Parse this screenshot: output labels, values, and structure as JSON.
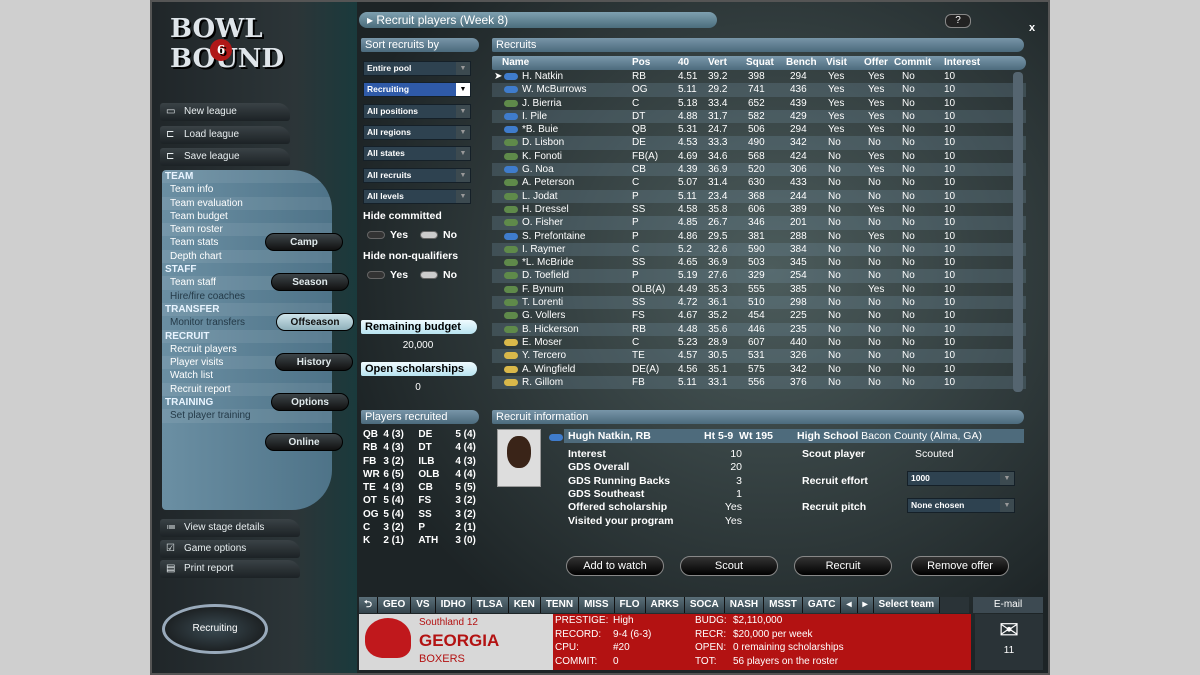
{
  "logo": {
    "text": "Bowl Bound",
    "badge": "6"
  },
  "left": {
    "buttons": [
      {
        "label": "New league",
        "icon": "folder-icon"
      },
      {
        "label": "Load league",
        "icon": "folder-open-icon"
      },
      {
        "label": "Save league",
        "icon": "folder-save-icon"
      }
    ],
    "nav": [
      {
        "label": "TEAM",
        "type": "h"
      },
      {
        "label": "Team info"
      },
      {
        "label": "Team evaluation"
      },
      {
        "label": "Team budget"
      },
      {
        "label": "Team roster"
      },
      {
        "label": "Team stats"
      },
      {
        "label": "Depth chart"
      },
      {
        "label": "STAFF",
        "type": "h"
      },
      {
        "label": "Team staff"
      },
      {
        "label": "Hire/fire coaches",
        "type": "dim"
      },
      {
        "label": "TRANSFER",
        "type": "h"
      },
      {
        "label": "Monitor transfers",
        "type": "dim"
      },
      {
        "label": "RECRUIT",
        "type": "h"
      },
      {
        "label": "Recruit players"
      },
      {
        "label": "Player visits"
      },
      {
        "label": "Watch list"
      },
      {
        "label": "Recruit report"
      },
      {
        "label": "TRAINING",
        "type": "h"
      },
      {
        "label": "Set player training",
        "type": "dim"
      }
    ],
    "stages": [
      "Camp",
      "Season",
      "Offseason",
      "History",
      "Options",
      "Online"
    ],
    "active_stage": "Offseason",
    "bottom": [
      {
        "label": "View stage details",
        "icon": "list-icon"
      },
      {
        "label": "Game options",
        "icon": "checkbox-icon"
      },
      {
        "label": "Print report",
        "icon": "print-icon"
      }
    ],
    "recruiting_button": "Recruiting"
  },
  "title": "Recruit players (Week 8)",
  "help": "?",
  "close": "x",
  "sort": {
    "header": "Sort recruits by",
    "selects": [
      "Entire pool",
      "Recruiting",
      "All positions",
      "All regions",
      "All states",
      "All recruits",
      "All levels"
    ],
    "hide_committed": "Hide committed",
    "hide_nonq": "Hide non-qualifiers",
    "yes": "Yes",
    "no": "No",
    "budget_label": "Remaining budget",
    "budget": "20,000",
    "schol_label": "Open scholarships",
    "schol": "0"
  },
  "players_recruited": {
    "header": "Players recruited",
    "rows": [
      [
        "QB",
        "4 (3)",
        "DE",
        "5 (4)"
      ],
      [
        "RB",
        "4 (3)",
        "DT",
        "4 (4)"
      ],
      [
        "FB",
        "3 (2)",
        "ILB",
        "4 (3)"
      ],
      [
        "WR",
        "6 (5)",
        "OLB",
        "4 (4)"
      ],
      [
        "TE",
        "4 (3)",
        "CB",
        "5 (5)"
      ],
      [
        "OT",
        "5 (4)",
        "FS",
        "3 (2)"
      ],
      [
        "OG",
        "5 (4)",
        "SS",
        "3 (2)"
      ],
      [
        "C",
        "3 (2)",
        "P",
        "2 (1)"
      ],
      [
        "K",
        "2 (1)",
        "ATH",
        "3 (0)"
      ]
    ]
  },
  "recruits": {
    "header": "Recruits",
    "columns": [
      "Name",
      "Pos",
      "40",
      "Vert",
      "Squat",
      "Bench",
      "Visit",
      "Offer",
      "Commit",
      "Interest"
    ],
    "colors": {
      "blue": "#3f7ccc",
      "green": "#5f8a4a",
      "yellow": "#d9b84a"
    },
    "rows": [
      [
        "blue",
        "H. Natkin",
        "RB",
        "4.51",
        "39.2",
        "398",
        "294",
        "Yes",
        "Yes",
        "No",
        "10"
      ],
      [
        "blue",
        "W. McBurrows",
        "OG",
        "5.11",
        "29.2",
        "741",
        "436",
        "Yes",
        "Yes",
        "No",
        "10"
      ],
      [
        "green",
        "J. Bierria",
        "C",
        "5.18",
        "33.4",
        "652",
        "439",
        "Yes",
        "Yes",
        "No",
        "10"
      ],
      [
        "blue",
        "I. Pile",
        "DT",
        "4.88",
        "31.7",
        "582",
        "429",
        "Yes",
        "Yes",
        "No",
        "10"
      ],
      [
        "blue",
        "*B. Buie",
        "QB",
        "5.31",
        "24.7",
        "506",
        "294",
        "Yes",
        "Yes",
        "No",
        "10"
      ],
      [
        "green",
        "D. Lisbon",
        "DE",
        "4.53",
        "33.3",
        "490",
        "342",
        "No",
        "No",
        "No",
        "10"
      ],
      [
        "green",
        "K. Fonoti",
        "FB(A)",
        "4.69",
        "34.6",
        "568",
        "424",
        "No",
        "Yes",
        "No",
        "10"
      ],
      [
        "blue",
        "G. Noa",
        "CB",
        "4.39",
        "36.9",
        "520",
        "306",
        "No",
        "Yes",
        "No",
        "10"
      ],
      [
        "green",
        "A. Peterson",
        "C",
        "5.07",
        "31.4",
        "630",
        "433",
        "No",
        "No",
        "No",
        "10"
      ],
      [
        "green",
        "L. Jodat",
        "P",
        "5.11",
        "23.4",
        "368",
        "244",
        "No",
        "No",
        "No",
        "10"
      ],
      [
        "green",
        "H. Dressel",
        "SS",
        "4.58",
        "35.8",
        "606",
        "389",
        "No",
        "Yes",
        "No",
        "10"
      ],
      [
        "green",
        "O. Fisher",
        "P",
        "4.85",
        "26.7",
        "346",
        "201",
        "No",
        "No",
        "No",
        "10"
      ],
      [
        "blue",
        "S. Prefontaine",
        "P",
        "4.86",
        "29.5",
        "381",
        "288",
        "No",
        "Yes",
        "No",
        "10"
      ],
      [
        "green",
        "I. Raymer",
        "C",
        "5.2",
        "32.6",
        "590",
        "384",
        "No",
        "No",
        "No",
        "10"
      ],
      [
        "green",
        "*L. McBride",
        "SS",
        "4.65",
        "36.9",
        "503",
        "345",
        "No",
        "No",
        "No",
        "10"
      ],
      [
        "green",
        "D. Toefield",
        "P",
        "5.19",
        "27.6",
        "329",
        "254",
        "No",
        "No",
        "No",
        "10"
      ],
      [
        "green",
        "F. Bynum",
        "OLB(A)",
        "4.49",
        "35.3",
        "555",
        "385",
        "No",
        "Yes",
        "No",
        "10"
      ],
      [
        "green",
        "T. Lorenti",
        "SS",
        "4.72",
        "36.1",
        "510",
        "298",
        "No",
        "No",
        "No",
        "10"
      ],
      [
        "green",
        "G. Vollers",
        "FS",
        "4.67",
        "35.2",
        "454",
        "225",
        "No",
        "No",
        "No",
        "10"
      ],
      [
        "green",
        "B. Hickerson",
        "RB",
        "4.48",
        "35.6",
        "446",
        "235",
        "No",
        "No",
        "No",
        "10"
      ],
      [
        "yellow",
        "E. Moser",
        "C",
        "5.23",
        "28.9",
        "607",
        "440",
        "No",
        "No",
        "No",
        "10"
      ],
      [
        "yellow",
        "Y. Tercero",
        "TE",
        "4.57",
        "30.5",
        "531",
        "326",
        "No",
        "No",
        "No",
        "10"
      ],
      [
        "yellow",
        "A. Wingfield",
        "DE(A)",
        "4.56",
        "35.1",
        "575",
        "342",
        "No",
        "No",
        "No",
        "10"
      ],
      [
        "yellow",
        "R. Gillom",
        "FB",
        "5.11",
        "33.1",
        "556",
        "376",
        "No",
        "No",
        "No",
        "10"
      ]
    ]
  },
  "info": {
    "header": "Recruit information",
    "name": "Hugh Natkin, RB",
    "ht_label": "Ht",
    "ht": "5-9",
    "wt_label": "Wt",
    "wt": "195",
    "hs_label": "High School",
    "hs": "Bacon County (Alma, GA)",
    "stats": [
      [
        "Interest",
        "10"
      ],
      [
        "GDS Overall",
        "20"
      ],
      [
        "GDS Running Backs",
        "3"
      ],
      [
        "GDS Southeast",
        "1"
      ],
      [
        "Offered scholarship",
        "Yes"
      ],
      [
        "Visited your program",
        "Yes"
      ]
    ],
    "scout_label": "Scout player",
    "scout": "Scouted",
    "effort_label": "Recruit effort",
    "effort": "1000",
    "pitch_label": "Recruit pitch",
    "pitch": "None chosen",
    "buttons": [
      "Add to watch",
      "Scout",
      "Recruit",
      "Remove offer"
    ]
  },
  "teambar": {
    "tabs": [
      "GEO",
      "VS",
      "IDHO",
      "TLSA",
      "KEN",
      "TENN",
      "MISS",
      "FLO",
      "ARKS",
      "SOCA",
      "NASH",
      "MSST",
      "GATC"
    ],
    "select": "Select team",
    "email": "E-mail",
    "mail_count": "11",
    "conf": "Southland 12",
    "team": "GEORGIA",
    "nick": "BOXERS",
    "prestige_l": "PRESTIGE:",
    "prestige": "High",
    "record_l": "RECORD:",
    "record": "9-4 (6-3)",
    "cpu_l": "CPU:",
    "cpu": "#20",
    "commit_l": "COMMIT:",
    "commit": "0",
    "budg_l": "BUDG:",
    "budg": "$2,110,000",
    "recr_l": "RECR:",
    "recr": "$20,000 per week",
    "open_l": "OPEN:",
    "open": "0 remaining scholarships",
    "tot_l": "TOT:",
    "tot": "56 players on the roster"
  }
}
